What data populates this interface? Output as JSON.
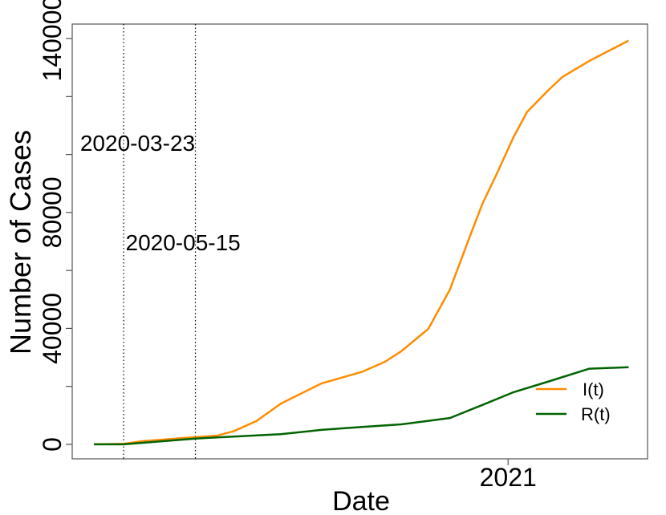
{
  "chart_data": {
    "type": "line",
    "title": "",
    "xlabel": "Date",
    "ylabel": "Number of Cases",
    "xlim": [
      "2020-02-14",
      "2021-04-14"
    ],
    "ylim": [
      -5000,
      145000
    ],
    "x_ticks": [
      {
        "date": "2021-01-01",
        "label": "2021"
      }
    ],
    "y_ticks": [
      0,
      20000,
      40000,
      60000,
      80000,
      100000,
      120000,
      140000
    ],
    "y_tick_labels": [
      {
        "value": 0,
        "label": "0"
      },
      {
        "value": 40000,
        "label": "40000"
      },
      {
        "value": 80000,
        "label": "80000"
      },
      {
        "value": 140000,
        "label": "140000"
      }
    ],
    "grid": false,
    "legend_position": "bottom-right",
    "vlines": [
      {
        "date": "2020-03-23",
        "label": "2020-03-23"
      },
      {
        "date": "2020-05-15",
        "label": "2020-05-15"
      }
    ],
    "series": [
      {
        "name": "I(t)",
        "color": "#FF8C00",
        "points": [
          [
            "2020-03-01",
            0
          ],
          [
            "2020-03-23",
            200
          ],
          [
            "2020-04-04",
            1000
          ],
          [
            "2020-05-15",
            2500
          ],
          [
            "2020-05-31",
            3000
          ],
          [
            "2020-06-12",
            4500
          ],
          [
            "2020-06-29",
            8000
          ],
          [
            "2020-07-17",
            14000
          ],
          [
            "2020-08-16",
            21000
          ],
          [
            "2020-09-15",
            25000
          ],
          [
            "2020-10-02",
            28500
          ],
          [
            "2020-10-14",
            32100
          ],
          [
            "2020-11-03",
            39800
          ],
          [
            "2020-11-19",
            53400
          ],
          [
            "2020-12-03",
            70800
          ],
          [
            "2020-12-13",
            83000
          ],
          [
            "2020-12-23",
            92700
          ],
          [
            "2021-01-05",
            106000
          ],
          [
            "2021-01-15",
            114700
          ],
          [
            "2021-01-31",
            122300
          ],
          [
            "2021-02-10",
            126700
          ],
          [
            "2021-03-02",
            132300
          ],
          [
            "2021-03-31",
            139300
          ]
        ]
      },
      {
        "name": "R(t)",
        "color": "#006400",
        "points": [
          [
            "2020-03-01",
            0
          ],
          [
            "2020-03-23",
            0
          ],
          [
            "2020-05-15",
            2000
          ],
          [
            "2020-07-17",
            3500
          ],
          [
            "2020-08-16",
            5000
          ],
          [
            "2020-09-15",
            6000
          ],
          [
            "2020-10-14",
            6900
          ],
          [
            "2020-11-19",
            9100
          ],
          [
            "2020-12-13",
            13600
          ],
          [
            "2021-01-05",
            18000
          ],
          [
            "2021-01-31",
            21700
          ],
          [
            "2021-03-02",
            26100
          ],
          [
            "2021-03-31",
            26600
          ]
        ]
      }
    ]
  }
}
